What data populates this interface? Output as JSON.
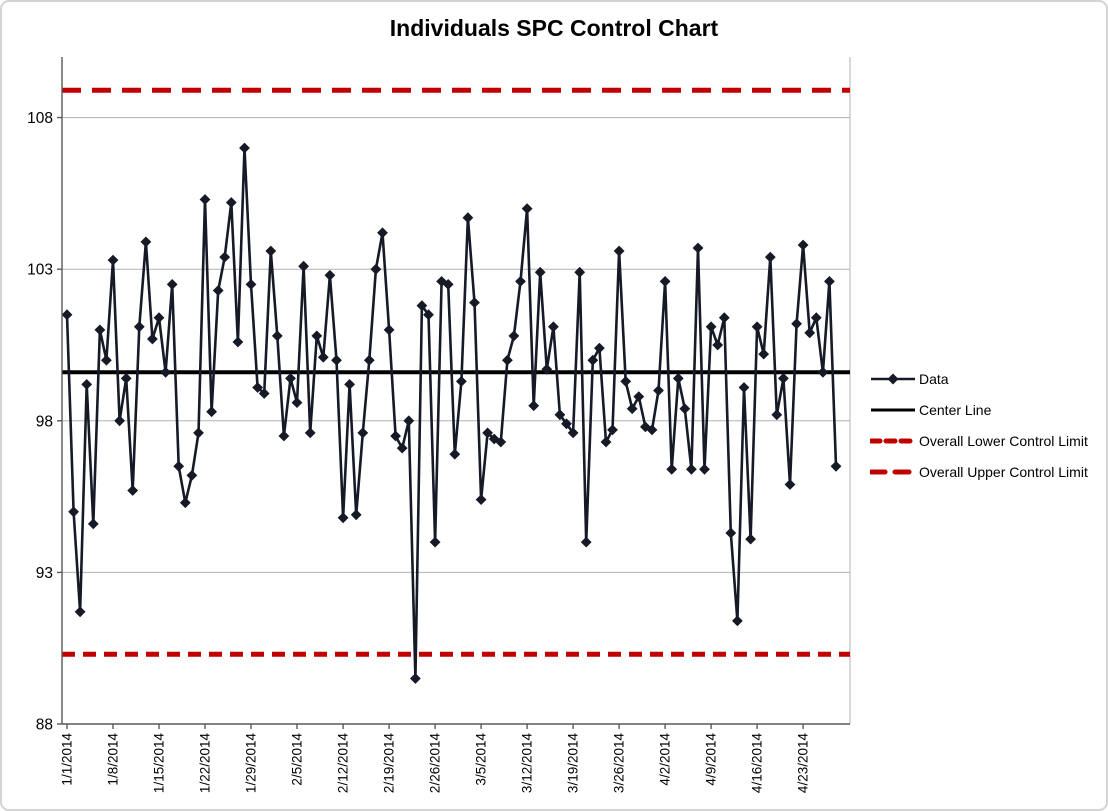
{
  "chart_data": {
    "type": "line",
    "title": "Individuals SPC Control Chart",
    "series_name": "Data",
    "values": [
      101.5,
      95.0,
      91.7,
      99.2,
      94.6,
      101.0,
      100.0,
      103.3,
      98.0,
      99.4,
      95.7,
      101.1,
      103.9,
      100.7,
      101.4,
      99.6,
      102.5,
      96.5,
      95.3,
      96.2,
      97.6,
      105.3,
      98.3,
      102.3,
      103.4,
      105.2,
      100.6,
      107.0,
      102.5,
      99.1,
      98.9,
      103.6,
      100.8,
      97.5,
      99.4,
      98.6,
      103.1,
      97.6,
      100.8,
      100.1,
      102.8,
      100.0,
      94.8,
      99.2,
      94.9,
      97.6,
      100.0,
      103.0,
      104.2,
      101.0,
      97.5,
      97.1,
      98.0,
      89.5,
      101.8,
      101.5,
      94.0,
      102.6,
      102.5,
      96.9,
      99.3,
      104.7,
      101.9,
      95.4,
      97.6,
      97.4,
      97.3,
      100.0,
      100.8,
      102.6,
      105.0,
      98.5,
      102.9,
      99.7,
      101.1,
      98.2,
      97.9,
      97.6,
      102.9,
      94.0,
      100.0,
      100.4,
      97.3,
      97.7,
      103.6,
      99.3,
      98.4,
      98.8,
      97.8,
      97.7,
      99.0,
      102.6,
      96.4,
      99.4,
      98.4,
      96.4,
      103.7,
      96.4,
      101.1,
      100.5,
      101.4,
      94.3,
      91.4,
      99.1,
      94.1,
      101.1,
      100.2,
      103.4,
      98.2,
      99.4,
      95.9,
      101.2,
      103.8,
      100.9,
      101.4,
      99.6,
      102.6,
      96.5
    ],
    "center_line": 99.6,
    "upper_control_limit": 108.9,
    "lower_control_limit": 90.3,
    "x_tick_labels": [
      "1/1/2014",
      "1/8/2014",
      "1/15/2014",
      "1/22/2014",
      "1/29/2014",
      "2/5/2014",
      "2/12/2014",
      "2/19/2014",
      "2/26/2014",
      "3/5/2014",
      "3/12/2014",
      "3/19/2014",
      "3/26/2014",
      "4/2/2014",
      "4/9/2014",
      "4/16/2014",
      "4/23/2014"
    ],
    "x_tick_every_n_points": 7,
    "y_ticks": [
      108,
      103,
      98,
      93,
      88
    ],
    "ylim": [
      88,
      110
    ],
    "grid": "horizontal",
    "legend_position": "right",
    "legend": [
      {
        "label": "Data",
        "swatch": "line-diamond"
      },
      {
        "label": "Center Line",
        "swatch": "line"
      },
      {
        "label": "Overall Lower Control Limit",
        "swatch": "dash-short"
      },
      {
        "label": "Overall Upper Control Limit",
        "swatch": "dash-long"
      }
    ],
    "colors": {
      "data": "#151a26",
      "center": "#000000",
      "limits": "#c00000",
      "grid": "#b3b3b3",
      "axis": "#595959",
      "text": "#000000"
    }
  }
}
